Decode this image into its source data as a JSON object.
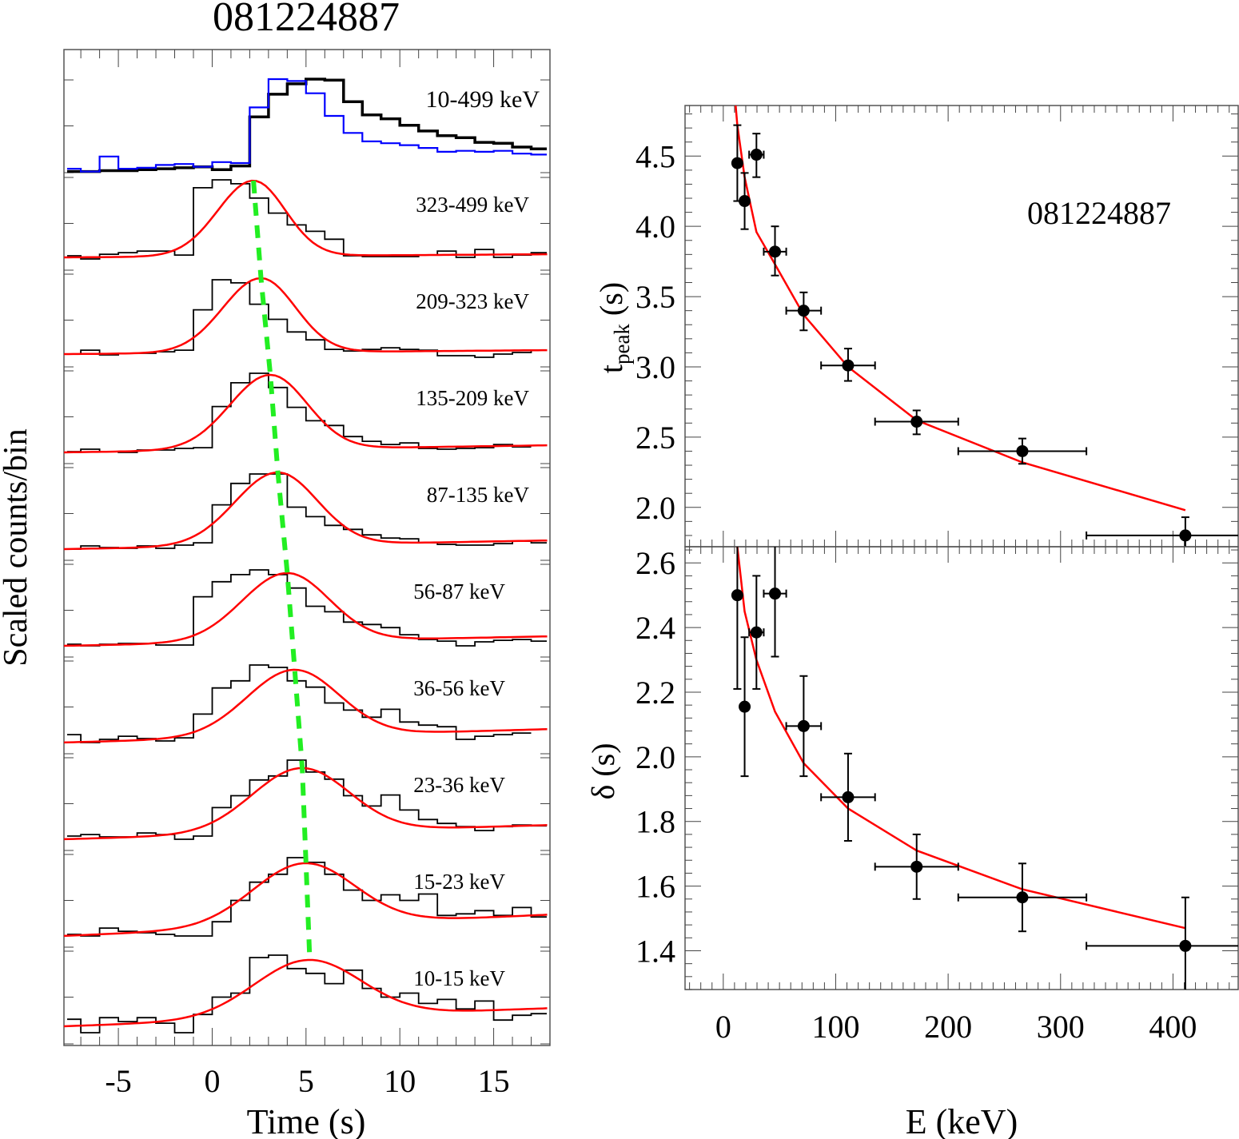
{
  "chart_data": [
    {
      "type": "line",
      "panel": "light-curves",
      "title": "081224887",
      "xlabel": "Time (s)",
      "ylabel": "Scaled counts/bin",
      "xlim": [
        -7.9,
        18
      ],
      "xticks": [
        -5,
        0,
        5,
        10,
        15
      ],
      "xtick_labels": [
        "-5",
        "0",
        "5",
        "10",
        "15"
      ],
      "bin_width_s": 1,
      "top_panel": {
        "label": "10-499 keV",
        "series": [
          {
            "name": "total",
            "color": "#000000",
            "bins_start": -8,
            "values": [
              0.02,
              0.02,
              0.03,
              0.03,
              0.04,
              0.05,
              0.06,
              0.07,
              0.04,
              0.08,
              0.6,
              0.84,
              0.95,
              1.0,
              0.99,
              0.76,
              0.62,
              0.58,
              0.51,
              0.45,
              0.4,
              0.38,
              0.33,
              0.32,
              0.28,
              0.26,
              0.24,
              0.22,
              0.21,
              0.2
            ]
          },
          {
            "name": "high-energy",
            "color": "#0000ff",
            "bins_start": -8,
            "values": [
              0.05,
              0.02,
              0.18,
              0.05,
              0.06,
              0.09,
              0.1,
              0.07,
              0.12,
              0.11,
              0.7,
              1.0,
              0.98,
              0.85,
              0.61,
              0.43,
              0.34,
              0.32,
              0.3,
              0.27,
              0.23,
              0.24,
              0.23,
              0.24,
              0.21,
              0.2,
              0.18,
              0.16,
              0.23,
              0.18
            ]
          }
        ]
      },
      "bands": [
        {
          "label": "323-499 keV",
          "peak_time": 2.2,
          "counts": [
            0.04,
            0.0,
            0.06,
            0.08,
            0.1,
            0.1,
            0.05,
            0.9,
            1.0,
            0.95,
            0.77,
            0.58,
            0.43,
            0.35,
            0.25,
            0.04,
            0.03,
            0.03,
            0.03,
            0.05,
            0.1,
            0.02,
            0.12,
            0.02,
            0.05,
            0.08,
            0.1,
            -0.05
          ],
          "fit_peak": 0.99,
          "fit_base": [
            0.02,
            0.06
          ]
        },
        {
          "label": "209-323 keV",
          "peak_time": 2.6,
          "counts": [
            0.02,
            0.07,
            0.01,
            0.03,
            0.03,
            0.05,
            0.07,
            0.58,
            0.96,
            0.92,
            0.65,
            0.46,
            0.3,
            0.2,
            0.08,
            0.06,
            0.08,
            0.1,
            0.08,
            0.07,
            0.0,
            0.0,
            -0.02,
            0.02,
            0.04,
            0.07
          ],
          "fit_peak": 0.98,
          "fit_base": [
            0.02,
            0.07
          ]
        },
        {
          "label": "135-209 keV",
          "peak_time": 3.1,
          "counts": [
            0.01,
            0.04,
            0.01,
            0.0,
            0.03,
            0.03,
            0.05,
            0.06,
            0.58,
            0.88,
            1.0,
            0.82,
            0.57,
            0.4,
            0.34,
            0.2,
            0.14,
            0.1,
            0.12,
            0.05,
            0.04,
            0.05,
            0.06,
            0.1,
            0.07
          ],
          "fit_peak": 0.98,
          "fit_base": [
            0.0,
            0.09
          ]
        },
        {
          "label": "87-135 keV",
          "peak_time": 3.5,
          "counts": [
            0.0,
            0.04,
            0.02,
            0.01,
            0.04,
            0.01,
            0.05,
            0.08,
            0.56,
            0.83,
            0.95,
            0.95,
            0.53,
            0.41,
            0.3,
            0.25,
            0.18,
            0.14,
            0.13,
            0.08,
            0.06,
            0.05,
            0.05,
            0.07,
            0.1,
            0.08
          ],
          "fit_peak": 0.97,
          "fit_base": [
            0.0,
            0.11
          ]
        },
        {
          "label": "56-87 keV",
          "peak_time": 4.0,
          "counts": [
            0.02,
            0.0,
            0.02,
            0.03,
            0.03,
            0.01,
            0.01,
            0.62,
            0.81,
            0.9,
            0.96,
            0.9,
            0.73,
            0.5,
            0.43,
            0.3,
            0.27,
            0.23,
            0.14,
            0.08,
            0.06,
            0.0,
            0.05,
            0.07,
            0.08,
            0.06
          ],
          "fit_peak": 0.92,
          "fit_base": [
            0.0,
            0.12
          ]
        },
        {
          "label": "36-56 keV",
          "peak_time": 4.4,
          "counts": [
            0.1,
            0.0,
            0.04,
            0.08,
            0.05,
            0.02,
            0.06,
            0.36,
            0.69,
            0.78,
            0.98,
            0.95,
            0.78,
            0.7,
            0.5,
            0.41,
            0.32,
            0.42,
            0.26,
            0.22,
            0.2,
            0.04,
            0.08,
            0.1,
            0.12
          ],
          "fit_peak": 0.92,
          "fit_base": [
            0.0,
            0.17
          ]
        },
        {
          "label": "23-36 keV",
          "peak_time": 4.8,
          "counts": [
            0.04,
            0.06,
            0.03,
            0.03,
            0.08,
            0.06,
            0.0,
            0.04,
            0.4,
            0.55,
            0.75,
            0.8,
            1.0,
            0.85,
            0.76,
            0.55,
            0.42,
            0.56,
            0.37,
            0.25,
            0.2,
            0.16,
            0.11,
            0.16,
            0.18,
            0.17
          ],
          "fit_peak": 0.9,
          "fit_base": [
            0.0,
            0.18
          ]
        },
        {
          "label": "15-23 keV",
          "peak_time": 5.0,
          "counts": [
            0.02,
            0.0,
            0.1,
            0.06,
            0.04,
            0.02,
            0.0,
            0.0,
            0.18,
            0.45,
            0.68,
            0.78,
            0.99,
            0.93,
            0.78,
            0.58,
            0.45,
            0.52,
            0.45,
            0.53,
            0.26,
            0.28,
            0.32,
            0.26,
            0.36,
            0.24,
            0.13
          ],
          "fit_peak": 0.92,
          "fit_base": [
            0.0,
            0.27
          ]
        },
        {
          "label": "10-15 keV",
          "peak_time": 5.2,
          "counts": [
            0.17,
            0.0,
            0.19,
            0.14,
            0.19,
            0.12,
            0.0,
            0.23,
            0.45,
            0.5,
            0.95,
            0.98,
            0.81,
            0.75,
            0.62,
            0.79,
            0.56,
            0.45,
            0.5,
            0.37,
            0.42,
            0.3,
            0.4,
            0.16,
            0.22,
            0.24,
            0.33
          ],
          "fit_peak": 0.92,
          "fit_base": [
            0.08,
            0.31
          ]
        }
      ],
      "peak_trend_line": {
        "color": "#00ee00",
        "style": "dashed"
      },
      "fit_color": "#ff0000"
    },
    {
      "type": "scatter",
      "panel": "tpeak-vs-energy",
      "annotation": "081224887",
      "ylabel": "t_peak (s)",
      "ylabel_main": "t",
      "ylabel_sub": "peak",
      "ylabel_suffix": " (s)",
      "xlim": [
        -34,
        458
      ],
      "ylim": [
        1.72,
        4.86
      ],
      "yticks": [
        2.0,
        2.5,
        3.0,
        3.5,
        4.0,
        4.5
      ],
      "ytick_labels": [
        "2.0",
        "2.5",
        "3.0",
        "3.5",
        "4.0",
        "4.5"
      ],
      "points": [
        {
          "x": 12.5,
          "xerr": [
            10,
            15
          ],
          "y": 4.45,
          "yerr": [
            4.18,
            4.72
          ]
        },
        {
          "x": 19,
          "xerr": [
            18,
            20
          ],
          "y": 4.18,
          "yerr": [
            3.98,
            4.38
          ]
        },
        {
          "x": 29.5,
          "xerr": [
            23,
            36
          ],
          "y": 4.51,
          "yerr": [
            4.35,
            4.66
          ]
        },
        {
          "x": 46,
          "xerr": [
            36,
            56
          ],
          "y": 3.82,
          "yerr": [
            3.65,
            4.0
          ]
        },
        {
          "x": 71.5,
          "xerr": [
            56,
            87
          ],
          "y": 3.4,
          "yerr": [
            3.26,
            3.53
          ]
        },
        {
          "x": 111,
          "xerr": [
            87,
            135
          ],
          "y": 3.01,
          "yerr": [
            2.9,
            3.13
          ]
        },
        {
          "x": 172,
          "xerr": [
            135,
            209
          ],
          "y": 2.61,
          "yerr": [
            2.52,
            2.69
          ]
        },
        {
          "x": 266,
          "xerr": [
            209,
            323
          ],
          "y": 2.4,
          "yerr": [
            2.31,
            2.49
          ]
        },
        {
          "x": 411,
          "xerr": [
            323,
            499
          ],
          "y": 1.8,
          "yerr": [
            1.66,
            1.93
          ]
        }
      ],
      "fit": {
        "color": "#ff0000",
        "x": [
          11,
          12.5,
          19,
          29.5,
          46,
          71.5,
          111,
          172,
          266,
          411
        ],
        "y": [
          4.86,
          4.72,
          4.35,
          3.96,
          3.73,
          3.37,
          3.0,
          2.62,
          2.32,
          1.98
        ]
      }
    },
    {
      "type": "scatter",
      "panel": "delta-vs-energy",
      "ylabel": "δ (s)",
      "xlabel": "E (keV)",
      "xlim": [
        -34,
        458
      ],
      "ylim": [
        1.28,
        2.65
      ],
      "xticks": [
        0,
        100,
        200,
        300,
        400
      ],
      "xtick_labels": [
        "0",
        "100",
        "200",
        "300",
        "400"
      ],
      "yticks": [
        1.4,
        1.6,
        1.8,
        2.0,
        2.2,
        2.4,
        2.6
      ],
      "ytick_labels": [
        "1.4",
        "1.6",
        "1.8",
        "2.0",
        "2.2",
        "2.4",
        "2.6"
      ],
      "points": [
        {
          "x": 12.5,
          "xerr": [
            12.5,
            12.5
          ],
          "y": 2.5,
          "yerr": [
            2.21,
            2.8
          ]
        },
        {
          "x": 19,
          "xerr": [
            19,
            19
          ],
          "y": 2.155,
          "yerr": [
            1.94,
            2.37
          ]
        },
        {
          "x": 29.5,
          "xerr": [
            23,
            36
          ],
          "y": 2.385,
          "yerr": [
            2.21,
            2.56
          ]
        },
        {
          "x": 46,
          "xerr": [
            36,
            56
          ],
          "y": 2.505,
          "yerr": [
            2.31,
            2.7
          ]
        },
        {
          "x": 71.5,
          "xerr": [
            56,
            87
          ],
          "y": 2.095,
          "yerr": [
            1.94,
            2.25
          ]
        },
        {
          "x": 111,
          "xerr": [
            87,
            135
          ],
          "y": 1.875,
          "yerr": [
            1.74,
            2.01
          ]
        },
        {
          "x": 172,
          "xerr": [
            135,
            209
          ],
          "y": 1.66,
          "yerr": [
            1.56,
            1.76
          ]
        },
        {
          "x": 266,
          "xerr": [
            209,
            323
          ],
          "y": 1.565,
          "yerr": [
            1.46,
            1.67
          ]
        },
        {
          "x": 411,
          "xerr": [
            323,
            499
          ],
          "y": 1.415,
          "yerr": [
            1.26,
            1.565
          ]
        }
      ],
      "fit": {
        "color": "#ff0000",
        "x": [
          12.5,
          19,
          29.5,
          46,
          71.5,
          111,
          172,
          266,
          411
        ],
        "y": [
          2.65,
          2.45,
          2.3,
          2.14,
          1.98,
          1.84,
          1.71,
          1.59,
          1.47
        ]
      }
    }
  ]
}
